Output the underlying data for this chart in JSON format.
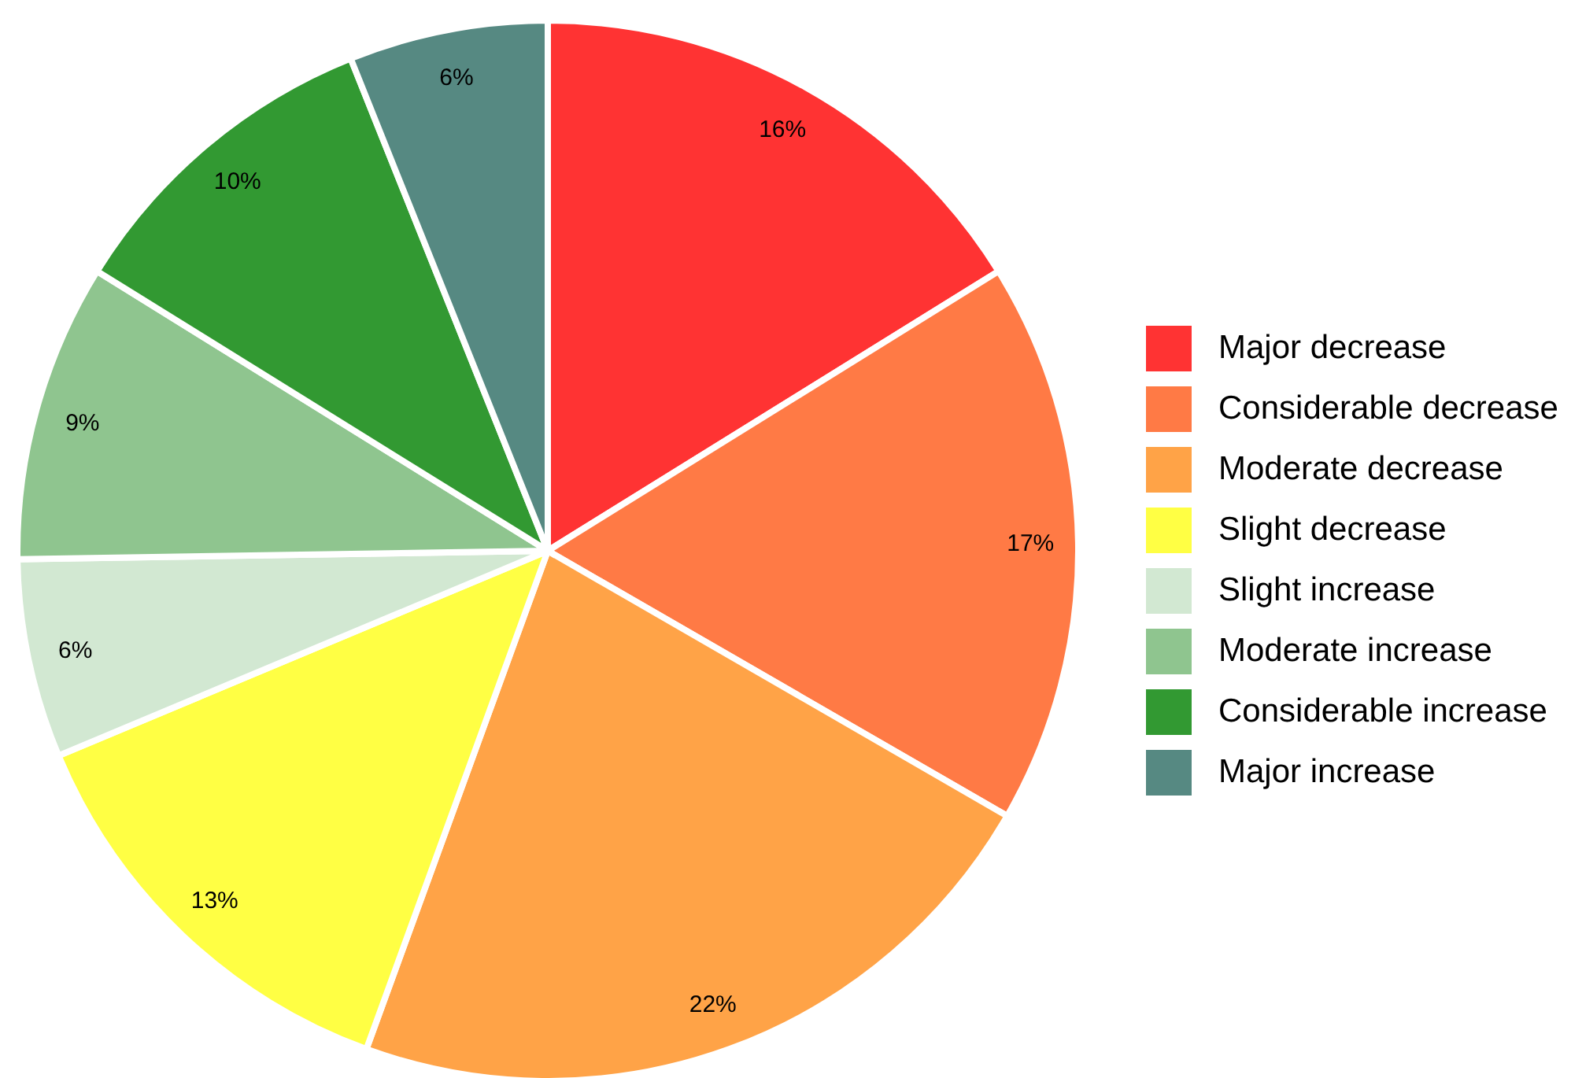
{
  "chart_data": {
    "type": "pie",
    "categories": [
      "Major decrease",
      "Considerable decrease",
      "Moderate decrease",
      "Slight decrease",
      "Slight increase",
      "Moderate increase",
      "Considerable increase",
      "Major increase"
    ],
    "values": [
      16,
      17,
      22,
      13,
      6,
      9,
      10,
      6
    ],
    "value_labels": [
      "16%",
      "17%",
      "22%",
      "13%",
      "6%",
      "9%",
      "10%",
      "6%"
    ],
    "colors": [
      "#ff3333",
      "#ff7a45",
      "#ffa347",
      "#ffff44",
      "#d2e8d2",
      "#8fc58f",
      "#329932",
      "#568982"
    ],
    "legend": "right"
  }
}
